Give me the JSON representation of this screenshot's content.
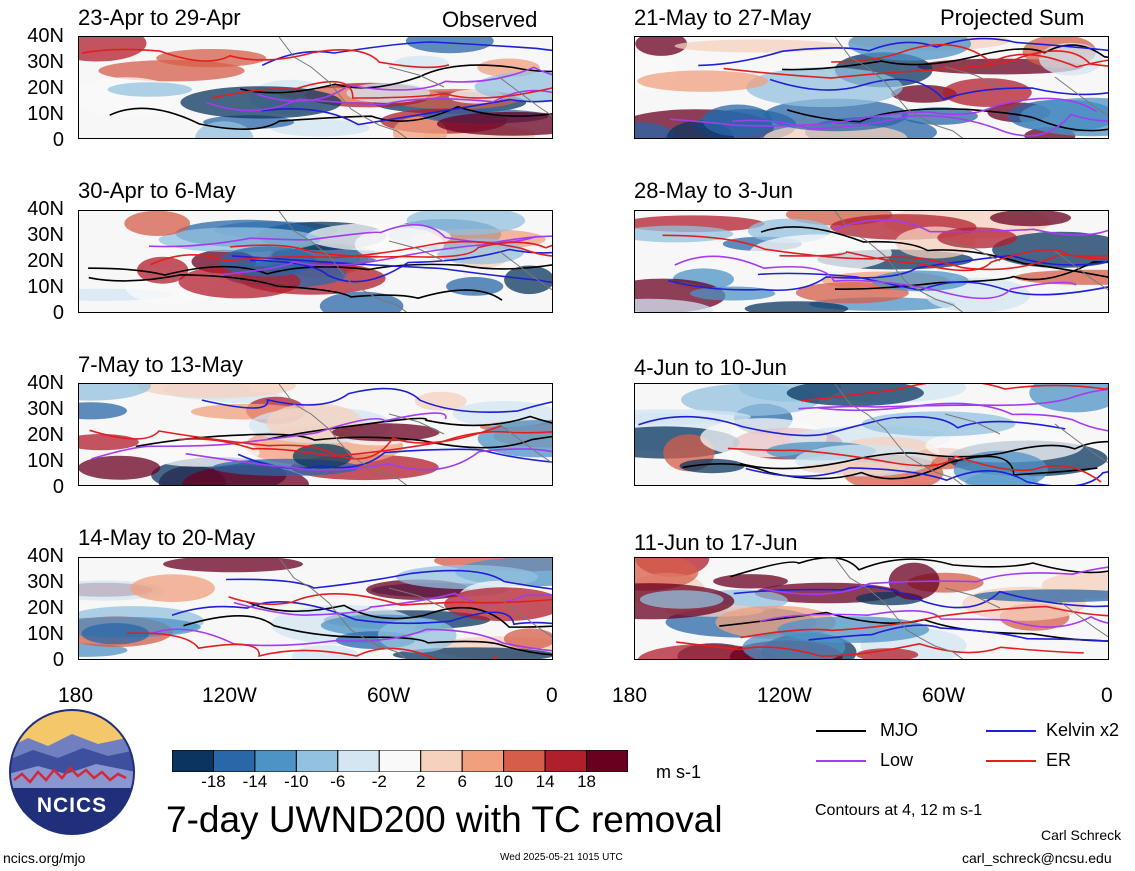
{
  "panels_left": [
    {
      "period": "23-Apr to 29-Apr",
      "tag": "Observed"
    },
    {
      "period": "30-Apr to 6-May",
      "tag": ""
    },
    {
      "period": "7-May to 13-May",
      "tag": ""
    },
    {
      "period": "14-May to 20-May",
      "tag": ""
    }
  ],
  "panels_right": [
    {
      "period": "21-May to 27-May",
      "tag": "Projected Sum"
    },
    {
      "period": "28-May to 3-Jun",
      "tag": ""
    },
    {
      "period": "4-Jun to 10-Jun",
      "tag": ""
    },
    {
      "period": "11-Jun to 17-Jun",
      "tag": ""
    }
  ],
  "lat_labels": [
    "40N",
    "30N",
    "20N",
    "10N",
    "0"
  ],
  "lon_labels": [
    "180",
    "120W",
    "60W",
    "0"
  ],
  "legend": {
    "contour_lines": [
      {
        "label": "MJO",
        "color": "#000000"
      },
      {
        "label": "Kelvin x2",
        "color": "#1f1fd6"
      },
      {
        "label": "Low",
        "color": "#a33cf0"
      },
      {
        "label": "ER",
        "color": "#e02020"
      }
    ],
    "contours_note": "Contours at 4, 12 m s-1"
  },
  "colorbar": {
    "ticks": [
      "-18",
      "-14",
      "-10",
      "-6",
      "-2",
      "2",
      "6",
      "10",
      "14",
      "18"
    ],
    "colors": [
      "#0b3560",
      "#2a67a8",
      "#4d93c6",
      "#93c2df",
      "#d3e6f2",
      "#f9f9f9",
      "#f6d1bd",
      "#f0a07f",
      "#d65d4a",
      "#b11e2c",
      "#6a0020"
    ],
    "units": "m s-1"
  },
  "title": "7-day UWND200 with TC removal",
  "logo": {
    "text": "NCICS"
  },
  "footer": {
    "url": "ncics.org/mjo",
    "timestamp": "Wed 2025-05-21 1015 UTC",
    "author": "Carl Schreck",
    "email": "carl_schreck@ncsu.edu"
  }
}
